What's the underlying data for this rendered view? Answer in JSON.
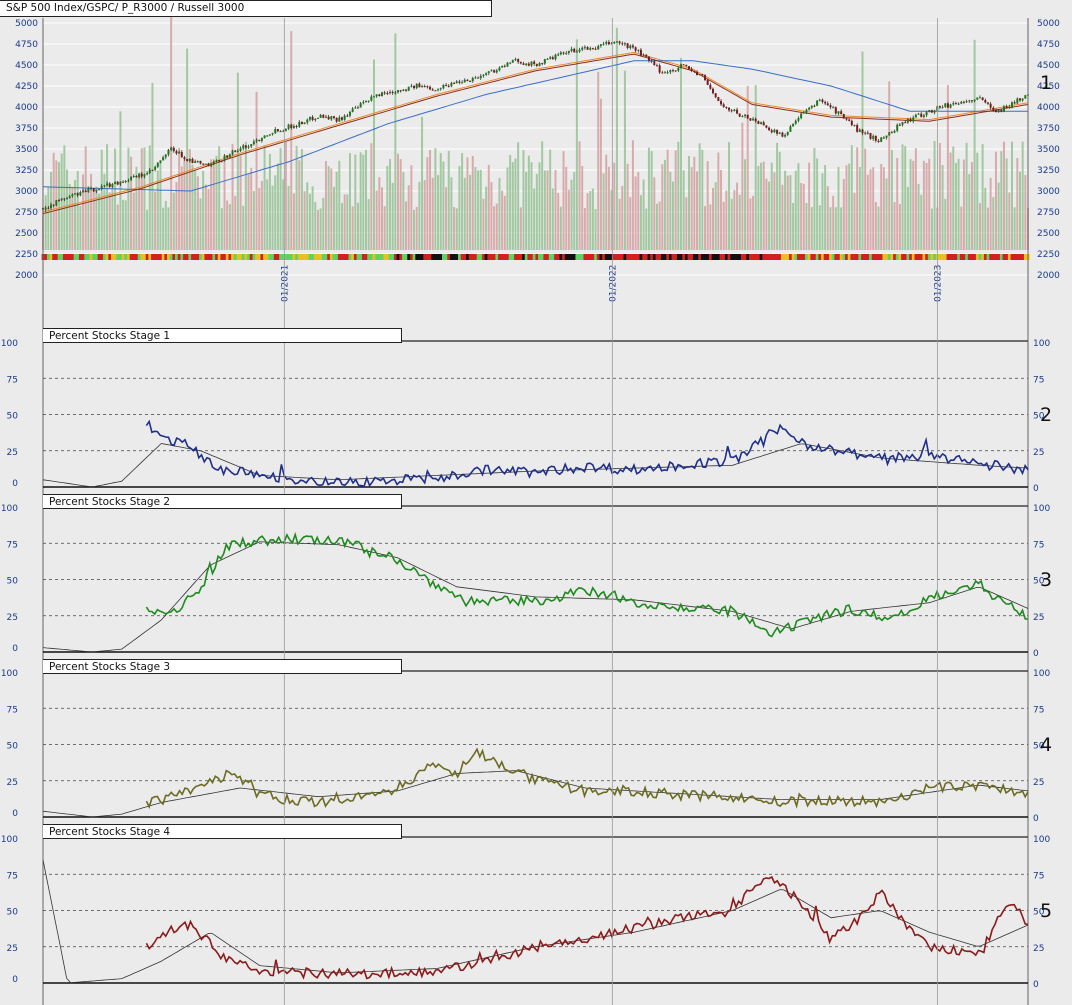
{
  "title": "S&P 500 Index/GSPC/ P_R3000 / Russell 3000",
  "x_ticks": [
    "01/2021",
    "01/2022",
    "01/2023"
  ],
  "colors": {
    "background": "#ebebeb",
    "up_candle": "#1a7a1a",
    "down_candle": "#7a1a1a",
    "volume_up": "#8fbf8f",
    "volume_down": "#d39b9b",
    "ma_fast": "#8b2f1f",
    "ma_mid": "#f08a2a",
    "ma_slow": "#3a6ec9",
    "stage1": "#1f2f8a",
    "stage2": "#1e8a1e",
    "stage3": "#6b6b22",
    "stage4": "#8b1a1a",
    "axis_text": "#1a3a8a"
  },
  "panels": [
    {
      "number": "1",
      "name": "S&P 500 Index/GSPC/ P_R3000 / Russell 3000"
    },
    {
      "number": "2",
      "name": "Percent Stocks Stage 1"
    },
    {
      "number": "3",
      "name": "Percent Stocks Stage 2"
    },
    {
      "number": "4",
      "name": "Percent Stocks Stage 3"
    },
    {
      "number": "5",
      "name": "Percent Stocks Stage 4"
    }
  ],
  "chart_data": [
    {
      "type": "line",
      "title": "S&P 500 Index/GSPC/ P_R3000 / Russell 3000",
      "subtype": "candlestick with volume and moving averages",
      "ylim": [
        2000,
        5000
      ],
      "y_ticks": [
        "5000",
        "4750",
        "4500",
        "4250",
        "4000",
        "3750",
        "3500",
        "3250",
        "3000",
        "2750",
        "2500",
        "2250",
        "2000"
      ],
      "x_ticks": [
        "01/2021",
        "01/2022",
        "01/2023"
      ],
      "series": [
        {
          "values": [
            [
              0,
              2800
            ],
            [
              0.03,
              2950
            ],
            [
              0.06,
              3050
            ],
            [
              0.09,
              3150
            ],
            [
              0.11,
              3230
            ],
            [
              0.13,
              3500
            ],
            [
              0.15,
              3350
            ],
            [
              0.17,
              3300
            ],
            [
              0.19,
              3450
            ],
            [
              0.21,
              3550
            ],
            [
              0.23,
              3700
            ],
            [
              0.26,
              3800
            ],
            [
              0.28,
              3900
            ],
            [
              0.3,
              3850
            ],
            [
              0.32,
              4000
            ],
            [
              0.34,
              4150
            ],
            [
              0.36,
              4200
            ],
            [
              0.38,
              4250
            ],
            [
              0.4,
              4220
            ],
            [
              0.42,
              4300
            ],
            [
              0.44,
              4350
            ],
            [
              0.46,
              4450
            ],
            [
              0.48,
              4550
            ],
            [
              0.5,
              4500
            ],
            [
              0.52,
              4600
            ],
            [
              0.54,
              4680
            ],
            [
              0.56,
              4700
            ],
            [
              0.58,
              4780
            ],
            [
              0.6,
              4700
            ],
            [
              0.61,
              4600
            ],
            [
              0.63,
              4400
            ],
            [
              0.65,
              4500
            ],
            [
              0.67,
              4350
            ],
            [
              0.69,
              4000
            ],
            [
              0.71,
              3900
            ],
            [
              0.73,
              3800
            ],
            [
              0.75,
              3650
            ],
            [
              0.77,
              3900
            ],
            [
              0.79,
              4100
            ],
            [
              0.81,
              3900
            ],
            [
              0.83,
              3700
            ],
            [
              0.85,
              3600
            ],
            [
              0.87,
              3800
            ],
            [
              0.89,
              3900
            ],
            [
              0.91,
              4000
            ],
            [
              0.93,
              4050
            ],
            [
              0.95,
              4100
            ],
            [
              0.97,
              3950
            ],
            [
              1.0,
              4150
            ]
          ]
        },
        {
          "name": "ma_mid",
          "values": [
            [
              0,
              2750
            ],
            [
              0.1,
              3050
            ],
            [
              0.2,
              3450
            ],
            [
              0.3,
              3800
            ],
            [
              0.4,
              4150
            ],
            [
              0.5,
              4450
            ],
            [
              0.6,
              4650
            ],
            [
              0.66,
              4450
            ],
            [
              0.72,
              4050
            ],
            [
              0.8,
              3900
            ],
            [
              0.9,
              3850
            ],
            [
              1.0,
              4050
            ]
          ]
        },
        {
          "name": "ma_slow",
          "values": [
            [
              0,
              3050
            ],
            [
              0.15,
              3000
            ],
            [
              0.25,
              3350
            ],
            [
              0.35,
              3800
            ],
            [
              0.45,
              4150
            ],
            [
              0.6,
              4550
            ],
            [
              0.66,
              4550
            ],
            [
              0.72,
              4450
            ],
            [
              0.8,
              4250
            ],
            [
              0.88,
              3950
            ],
            [
              1.0,
              3950
            ]
          ]
        }
      ]
    },
    {
      "type": "line",
      "title": "Percent Stocks Stage 1",
      "ylim": [
        0,
        100
      ],
      "y_ticks": [
        100,
        75,
        50,
        25,
        0
      ],
      "series": [
        {
          "values": [
            [
              0.105,
              41
            ],
            [
              0.12,
              35
            ],
            [
              0.15,
              28
            ],
            [
              0.18,
              12
            ],
            [
              0.25,
              6
            ],
            [
              0.3,
              3
            ],
            [
              0.4,
              6
            ],
            [
              0.45,
              12
            ],
            [
              0.5,
              10
            ],
            [
              0.55,
              14
            ],
            [
              0.6,
              12
            ],
            [
              0.7,
              18
            ],
            [
              0.75,
              40
            ],
            [
              0.78,
              28
            ],
            [
              0.85,
              20
            ],
            [
              0.9,
              22
            ],
            [
              0.95,
              16
            ],
            [
              1.0,
              12
            ]
          ]
        },
        {
          "values": [
            [
              0,
              5
            ],
            [
              0.05,
              0
            ],
            [
              0.08,
              4
            ],
            [
              0.12,
              30
            ],
            [
              0.16,
              25
            ],
            [
              0.22,
              8
            ],
            [
              0.3,
              5
            ],
            [
              0.4,
              8
            ],
            [
              0.5,
              11
            ],
            [
              0.6,
              13
            ],
            [
              0.7,
              15
            ],
            [
              0.77,
              30
            ],
            [
              0.85,
              20
            ],
            [
              0.95,
              15
            ],
            [
              1.0,
              13
            ]
          ]
        }
      ]
    },
    {
      "type": "line",
      "title": "Percent Stocks Stage 2",
      "ylim": [
        0,
        100
      ],
      "y_ticks": [
        100,
        75,
        50,
        25,
        0
      ],
      "series": [
        {
          "values": [
            [
              0.105,
              28
            ],
            [
              0.13,
              25
            ],
            [
              0.16,
              45
            ],
            [
              0.19,
              75
            ],
            [
              0.25,
              78
            ],
            [
              0.3,
              76
            ],
            [
              0.35,
              68
            ],
            [
              0.39,
              50
            ],
            [
              0.43,
              35
            ],
            [
              0.5,
              35
            ],
            [
              0.55,
              42
            ],
            [
              0.6,
              35
            ],
            [
              0.65,
              30
            ],
            [
              0.7,
              28
            ],
            [
              0.74,
              12
            ],
            [
              0.78,
              22
            ],
            [
              0.82,
              30
            ],
            [
              0.86,
              22
            ],
            [
              0.9,
              38
            ],
            [
              0.95,
              48
            ],
            [
              0.97,
              35
            ],
            [
              1.0,
              25
            ]
          ]
        },
        {
          "values": [
            [
              0,
              3
            ],
            [
              0.05,
              0
            ],
            [
              0.08,
              2
            ],
            [
              0.12,
              22
            ],
            [
              0.17,
              60
            ],
            [
              0.22,
              76
            ],
            [
              0.3,
              74
            ],
            [
              0.36,
              65
            ],
            [
              0.42,
              45
            ],
            [
              0.5,
              38
            ],
            [
              0.6,
              36
            ],
            [
              0.7,
              28
            ],
            [
              0.76,
              16
            ],
            [
              0.82,
              28
            ],
            [
              0.9,
              34
            ],
            [
              0.95,
              45
            ],
            [
              1.0,
              30
            ]
          ]
        }
      ]
    },
    {
      "type": "line",
      "title": "Percent Stocks Stage 3",
      "ylim": [
        0,
        100
      ],
      "y_ticks": [
        100,
        75,
        50,
        25,
        0
      ],
      "series": [
        {
          "values": [
            [
              0.105,
              9
            ],
            [
              0.15,
              18
            ],
            [
              0.19,
              30
            ],
            [
              0.24,
              12
            ],
            [
              0.3,
              10
            ],
            [
              0.36,
              20
            ],
            [
              0.4,
              38
            ],
            [
              0.42,
              30
            ],
            [
              0.44,
              45
            ],
            [
              0.5,
              25
            ],
            [
              0.55,
              18
            ],
            [
              0.6,
              18
            ],
            [
              0.65,
              15
            ],
            [
              0.7,
              14
            ],
            [
              0.75,
              10
            ],
            [
              0.8,
              12
            ],
            [
              0.85,
              10
            ],
            [
              0.9,
              20
            ],
            [
              0.95,
              22
            ],
            [
              1.0,
              16
            ]
          ]
        },
        {
          "values": [
            [
              0,
              4
            ],
            [
              0.05,
              0
            ],
            [
              0.08,
              2
            ],
            [
              0.12,
              10
            ],
            [
              0.2,
              20
            ],
            [
              0.28,
              14
            ],
            [
              0.36,
              18
            ],
            [
              0.42,
              30
            ],
            [
              0.48,
              32
            ],
            [
              0.55,
              20
            ],
            [
              0.65,
              16
            ],
            [
              0.75,
              12
            ],
            [
              0.85,
              12
            ],
            [
              0.95,
              22
            ],
            [
              1.0,
              18
            ]
          ]
        }
      ]
    },
    {
      "type": "line",
      "title": "Percent Stocks Stage 4",
      "ylim": [
        0,
        100
      ],
      "y_ticks": [
        100,
        75,
        50,
        25,
        0
      ],
      "series": [
        {
          "values": [
            [
              0.105,
              25
            ],
            [
              0.12,
              35
            ],
            [
              0.15,
              40
            ],
            [
              0.18,
              20
            ],
            [
              0.22,
              8
            ],
            [
              0.3,
              6
            ],
            [
              0.4,
              8
            ],
            [
              0.45,
              15
            ],
            [
              0.5,
              25
            ],
            [
              0.55,
              30
            ],
            [
              0.6,
              38
            ],
            [
              0.65,
              45
            ],
            [
              0.7,
              50
            ],
            [
              0.72,
              65
            ],
            [
              0.74,
              72
            ],
            [
              0.77,
              55
            ],
            [
              0.8,
              30
            ],
            [
              0.83,
              45
            ],
            [
              0.85,
              62
            ],
            [
              0.87,
              45
            ],
            [
              0.9,
              25
            ],
            [
              0.95,
              20
            ],
            [
              0.98,
              55
            ],
            [
              1.0,
              42
            ]
          ]
        },
        {
          "values": [
            [
              0,
              85
            ],
            [
              0.025,
              0
            ],
            [
              0.08,
              3
            ],
            [
              0.12,
              15
            ],
            [
              0.17,
              35
            ],
            [
              0.22,
              12
            ],
            [
              0.3,
              7
            ],
            [
              0.4,
              10
            ],
            [
              0.5,
              25
            ],
            [
              0.6,
              35
            ],
            [
              0.7,
              50
            ],
            [
              0.75,
              65
            ],
            [
              0.8,
              45
            ],
            [
              0.85,
              50
            ],
            [
              0.9,
              35
            ],
            [
              0.95,
              25
            ],
            [
              1.0,
              40
            ]
          ]
        }
      ]
    }
  ]
}
